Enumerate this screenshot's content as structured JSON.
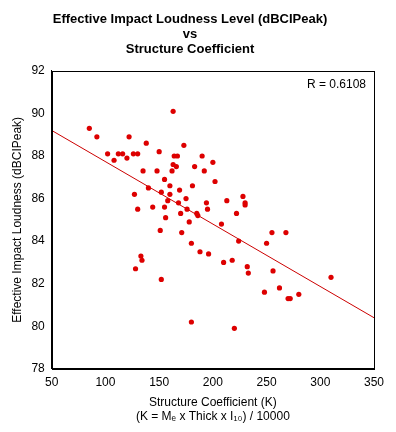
{
  "chart_data": {
    "type": "scatter",
    "title": [
      "Effective Impact Loudness Level (dBCIPeak)",
      "vs",
      "Structure Coefficient"
    ],
    "x_label": [
      "Structure Coefficient (K)",
      "(K = Mₑ x Thick x I₁₀) / 10000"
    ],
    "y_label": "Effective Impact Loudness (dBCIPeak)",
    "annotation": "R = 0.6108",
    "xlim": [
      50,
      350
    ],
    "xticks": [
      50,
      100,
      150,
      200,
      250,
      300,
      350
    ],
    "ylim": [
      78,
      92
    ],
    "yticks": [
      78,
      80,
      82,
      84,
      86,
      88,
      90,
      92
    ],
    "grid": false,
    "series": [
      {
        "type": "scatter",
        "marker": "circle",
        "color": "#dd0000",
        "x": [
          85,
          92,
          102,
          108,
          112,
          116,
          120,
          122,
          126,
          130,
          127,
          130,
          128,
          133,
          134,
          135,
          138,
          140,
          144,
          148,
          150,
          151,
          152,
          152,
          155,
          155,
          156,
          158,
          160,
          160,
          162,
          163,
          163,
          164,
          166,
          167,
          168,
          169,
          170,
          171,
          173,
          175,
          176,
          178,
          180,
          180,
          181,
          183,
          185,
          186,
          188,
          190,
          192,
          194,
          195,
          196,
          200,
          202,
          208,
          210,
          213,
          218,
          220,
          222,
          224,
          228,
          230,
          230,
          232,
          233,
          248,
          250,
          255,
          256,
          262,
          268,
          270,
          272,
          280,
          310
        ],
        "values": [
          89.3,
          88.9,
          88.1,
          87.8,
          88.1,
          88.1,
          87.9,
          88.9,
          88.1,
          88.1,
          86.2,
          85.5,
          82.7,
          83.3,
          83.1,
          87.3,
          88.6,
          86.5,
          85.6,
          87.3,
          88.2,
          84.5,
          82.2,
          86.3,
          86.9,
          85.6,
          85.1,
          85.9,
          86.6,
          86.2,
          87.3,
          87.6,
          90.1,
          88.0,
          87.5,
          88.0,
          85.8,
          86.4,
          85.3,
          84.4,
          88.5,
          86.0,
          85.5,
          84.9,
          83.9,
          80.2,
          86.6,
          87.5,
          85.3,
          85.2,
          83.5,
          88.0,
          87.3,
          85.8,
          85.5,
          83.4,
          87.7,
          86.8,
          84.8,
          83.0,
          85.9,
          83.1,
          79.9,
          85.3,
          84.0,
          86.1,
          85.7,
          85.8,
          82.8,
          82.5,
          81.6,
          83.9,
          84.4,
          82.6,
          81.8,
          84.4,
          81.3,
          81.3,
          81.5,
          82.3
        ]
      },
      {
        "type": "line",
        "line_style": "solid",
        "color": "#cc0000",
        "x": [
          50,
          350
        ],
        "values": [
          89.2,
          80.4
        ]
      }
    ]
  }
}
